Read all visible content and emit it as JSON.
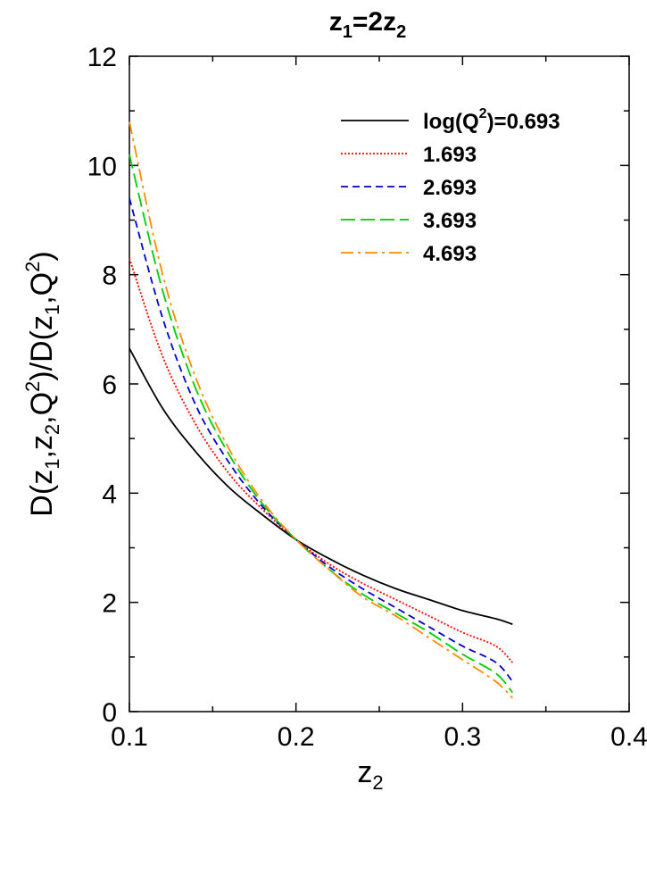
{
  "chart_data": {
    "type": "line",
    "title": {
      "main": "z",
      "sub1": "1",
      "mid": "=2z",
      "sub2": "2"
    },
    "xlabel": {
      "main": "z",
      "sub": "2"
    },
    "ylabel": "D(z1,z2,Q^2)/D(z1,Q^2)",
    "xlim": [
      0.1,
      0.4
    ],
    "ylim": [
      0,
      12
    ],
    "x_ticks": [
      "0.1",
      "0.2",
      "0.3",
      "0.4"
    ],
    "y_ticks": [
      "0",
      "2",
      "4",
      "6",
      "8",
      "10",
      "12"
    ],
    "grid": false,
    "legend_position": "top-right",
    "legend_first_label": {
      "pre": "log(Q",
      "sup": "2",
      "post": ")=0.693"
    },
    "x": [
      0.1,
      0.12,
      0.14,
      0.16,
      0.18,
      0.2,
      0.22,
      0.24,
      0.26,
      0.28,
      0.3,
      0.32,
      0.33
    ],
    "series": [
      {
        "name": "log(Q^2)=0.693",
        "color": "#000000",
        "dash": "",
        "values": [
          6.65,
          5.55,
          4.75,
          4.1,
          3.6,
          3.15,
          2.8,
          2.5,
          2.25,
          2.05,
          1.85,
          1.7,
          1.6
        ]
      },
      {
        "name": "1.693",
        "color": "#ff0000",
        "dash": "2,2",
        "values": [
          8.3,
          6.5,
          5.25,
          4.35,
          3.7,
          3.15,
          2.7,
          2.35,
          2.05,
          1.75,
          1.45,
          1.2,
          0.9
        ]
      },
      {
        "name": "2.693",
        "color": "#0000cc",
        "dash": "8,5",
        "values": [
          9.4,
          7.2,
          5.6,
          4.55,
          3.75,
          3.15,
          2.65,
          2.25,
          1.9,
          1.55,
          1.2,
          0.9,
          0.55
        ]
      },
      {
        "name": "3.693",
        "color": "#00cc00",
        "dash": "16,6",
        "values": [
          10.2,
          7.7,
          5.9,
          4.7,
          3.8,
          3.15,
          2.6,
          2.15,
          1.8,
          1.45,
          1.05,
          0.7,
          0.35
        ]
      },
      {
        "name": "4.693",
        "color": "#ff8c00",
        "dash": "14,5,3,5",
        "values": [
          10.8,
          8.0,
          6.1,
          4.8,
          3.85,
          3.15,
          2.6,
          2.1,
          1.75,
          1.35,
          0.95,
          0.55,
          0.25
        ]
      }
    ]
  }
}
